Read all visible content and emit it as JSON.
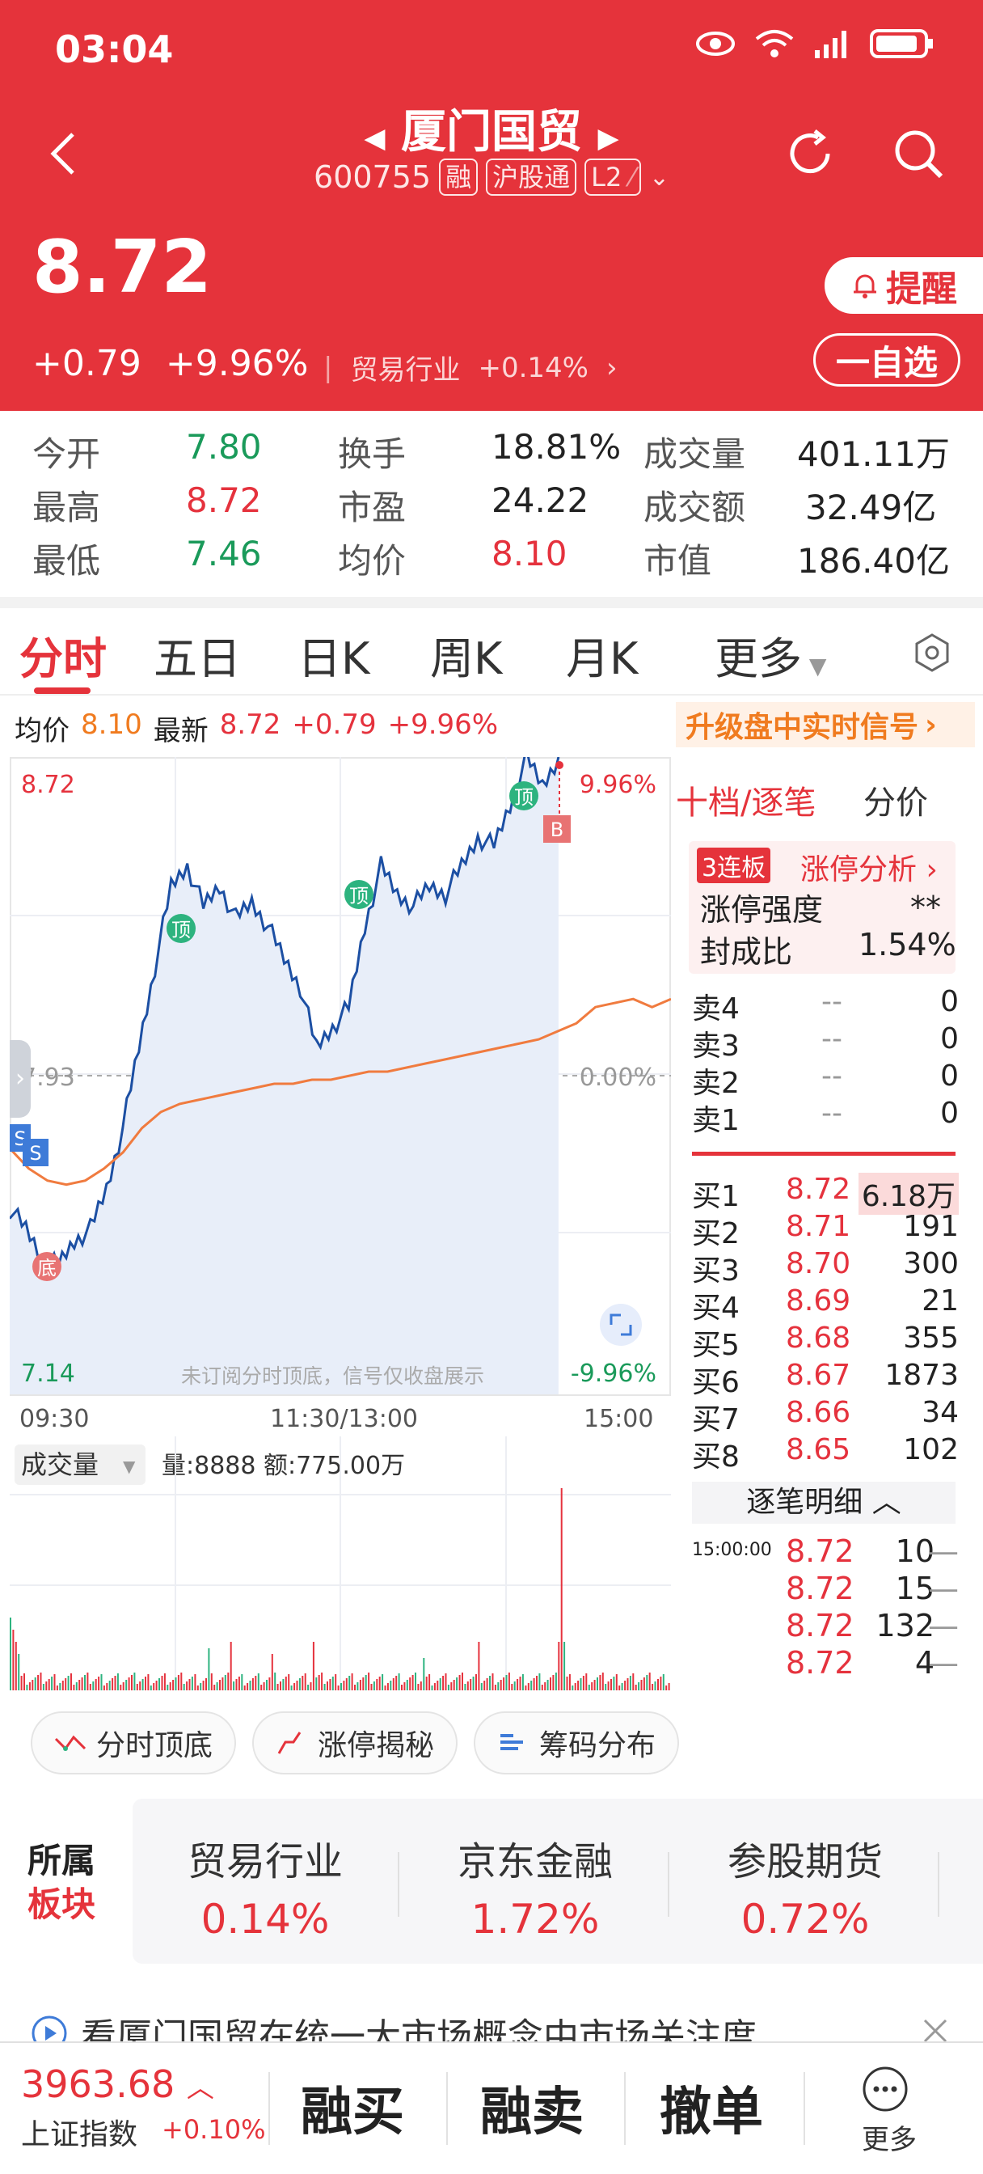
{
  "status": {
    "time": "03:04"
  },
  "header": {
    "name": "厦门国贸",
    "code": "600755",
    "tags": [
      "融",
      "沪股通",
      "L2"
    ],
    "price": "8.72",
    "change": "+0.79",
    "change_pct": "+9.96%",
    "industry": "贸易行业",
    "industry_pct": "+0.14%",
    "remind": "提醒",
    "fav": "一自选"
  },
  "stats": {
    "open_label": "今开",
    "open": "7.80",
    "high_label": "最高",
    "high": "8.72",
    "low_label": "最低",
    "low": "7.46",
    "turnover_label": "换手",
    "turnover": "18.81%",
    "pe_label": "市盈",
    "pe": "24.22",
    "avg_label": "均价",
    "avg": "8.10",
    "vol_label": "成交量",
    "vol": "401.11万",
    "amt_label": "成交额",
    "amt": "32.49亿",
    "cap_label": "市值",
    "cap": "186.40亿"
  },
  "tabs": [
    "分时",
    "五日",
    "日K",
    "周K",
    "月K",
    "更多"
  ],
  "info": {
    "avg_label": "均价",
    "avg": "8.10",
    "latest_label": "最新",
    "latest": "8.72",
    "chg": "+0.79",
    "pct": "+9.96%",
    "upgrade": "升级盘中实时信号"
  },
  "chart": {
    "top_price": "8.72",
    "top_pct": "9.96%",
    "mid_price": "7.93",
    "mid_pct": "0.00%",
    "bot_price": "7.14",
    "bot_pct": "-9.96%",
    "note": "未订阅分时顶底，信号仅收盘展示",
    "t_start": "09:30",
    "t_mid": "11:30/13:00",
    "t_end": "15:00",
    "vol_label": "成交量",
    "vol_info": "量:8888 额:775.00万",
    "marker_top": "顶",
    "marker_bottom": "底",
    "marker_sell": "S",
    "marker_buy": "B"
  },
  "chart_data": {
    "type": "line",
    "y_range": [
      7.14,
      8.72
    ],
    "prev_close": 7.93,
    "series": [
      {
        "values": [
          7.6,
          7.55,
          7.48,
          7.46,
          7.52,
          7.55,
          7.65,
          7.8,
          8.0,
          8.2,
          8.4,
          8.45,
          8.35,
          8.4,
          8.32,
          8.36,
          8.3,
          8.22,
          8.15,
          8.0,
          8.05,
          8.1,
          8.3,
          8.45,
          8.38,
          8.35,
          8.4,
          8.38,
          8.45,
          8.52,
          8.5,
          8.6,
          8.72,
          8.65,
          8.72
        ]
      },
      {
        "values": [
          7.75,
          7.7,
          7.67,
          7.66,
          7.67,
          7.7,
          7.74,
          7.8,
          7.84,
          7.86,
          7.87,
          7.88,
          7.89,
          7.9,
          7.91,
          7.91,
          7.92,
          7.92,
          7.93,
          7.94,
          7.94,
          7.95,
          7.96,
          7.97,
          7.98,
          7.99,
          8.0,
          8.01,
          8.02,
          8.04,
          8.06,
          8.1,
          8.11,
          8.12,
          8.1
        ]
      }
    ]
  },
  "orderbook": {
    "tab1": "十档/逐笔",
    "tab2": "分价",
    "streak": "3连板",
    "analysis": "涨停分析",
    "strength_label": "涨停强度",
    "strength": "**",
    "seal_label": "封成比",
    "seal": "1.54%",
    "sells": [
      {
        "label": "卖4",
        "price": "--",
        "vol": "0"
      },
      {
        "label": "卖3",
        "price": "--",
        "vol": "0"
      },
      {
        "label": "卖2",
        "price": "--",
        "vol": "0"
      },
      {
        "label": "卖1",
        "price": "--",
        "vol": "0"
      }
    ],
    "buys": [
      {
        "label": "买1",
        "price": "8.72",
        "vol": "6.18万"
      },
      {
        "label": "买2",
        "price": "8.71",
        "vol": "191"
      },
      {
        "label": "买3",
        "price": "8.70",
        "vol": "300"
      },
      {
        "label": "买4",
        "price": "8.69",
        "vol": "21"
      },
      {
        "label": "买5",
        "price": "8.68",
        "vol": "355"
      },
      {
        "label": "买6",
        "price": "8.67",
        "vol": "1873"
      },
      {
        "label": "买7",
        "price": "8.66",
        "vol": "34"
      },
      {
        "label": "买8",
        "price": "8.65",
        "vol": "102"
      }
    ],
    "detail_label": "逐笔明细",
    "ticks": [
      {
        "time": "15:00:00",
        "price": "8.72",
        "vol": "10"
      },
      {
        "time": "",
        "price": "8.72",
        "vol": "15"
      },
      {
        "time": "",
        "price": "8.72",
        "vol": "132"
      },
      {
        "time": "",
        "price": "8.72",
        "vol": "4"
      }
    ]
  },
  "features": [
    "分时顶底",
    "涨停揭秘",
    "筹码分布"
  ],
  "sectors": {
    "label1": "所属",
    "label2": "板块",
    "items": [
      {
        "name": "贸易行业",
        "pct": "0.14%"
      },
      {
        "name": "京东金融",
        "pct": "1.72%"
      },
      {
        "name": "参股期货",
        "pct": "0.72%"
      }
    ]
  },
  "news": "看厦门国贸在统一大市场概念中市场关注度",
  "bottom": {
    "index_price": "3963.68",
    "index_name": "上证指数",
    "index_pct": "+0.10%",
    "buy": "融买",
    "sell": "融卖",
    "cancel": "撤单",
    "more": "更多"
  }
}
